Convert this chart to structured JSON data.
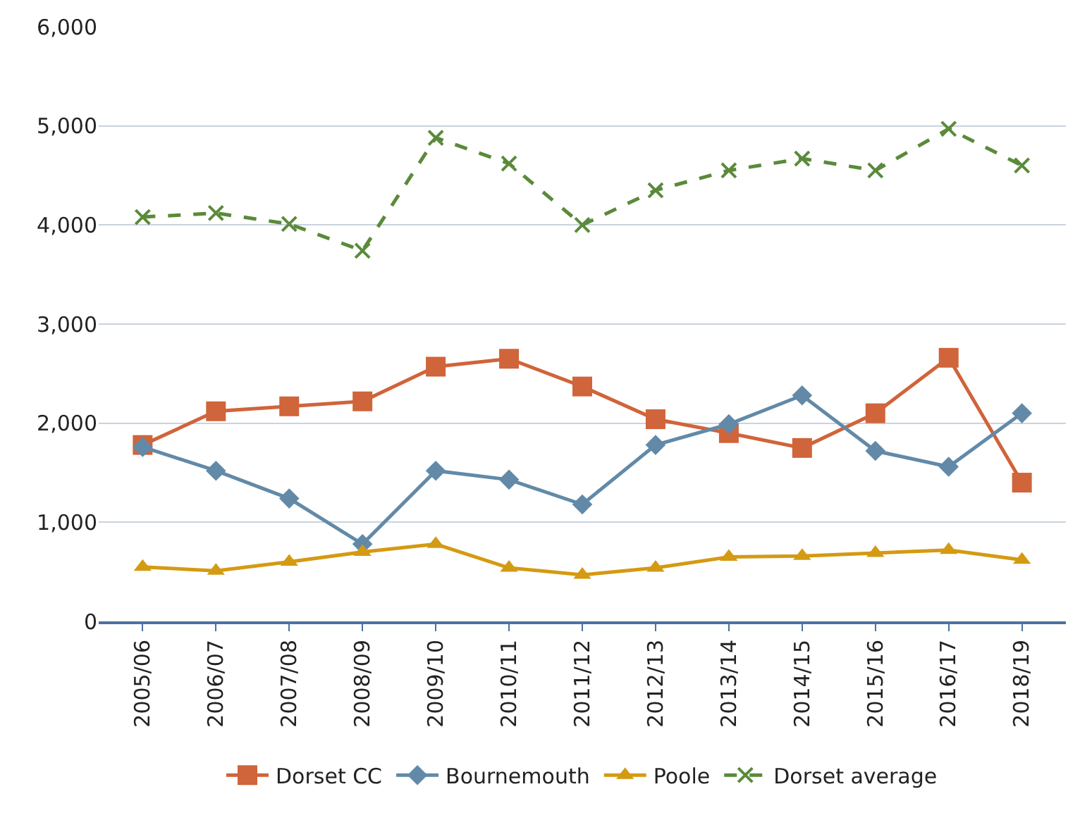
{
  "chart_data": {
    "type": "line",
    "categories": [
      "2005/06",
      "2006/07",
      "2007/08",
      "2008/09",
      "2009/10",
      "2010/11",
      "2011/12",
      "2012/13",
      "2013/14",
      "2014/15",
      "2015/16",
      "2016/17",
      "2018/19"
    ],
    "series": [
      {
        "name": "Dorset CC",
        "color": "#d0643a",
        "marker": "square",
        "line_style": "solid",
        "values": [
          1780,
          2120,
          2170,
          2220,
          2570,
          2650,
          2370,
          2040,
          1900,
          1750,
          2100,
          2660,
          1400
        ]
      },
      {
        "name": "Bournemouth",
        "color": "#628aa8",
        "marker": "diamond",
        "line_style": "solid",
        "values": [
          1760,
          1520,
          1240,
          780,
          1520,
          1430,
          1180,
          1780,
          1990,
          2280,
          1720,
          1560,
          2100
        ]
      },
      {
        "name": "Poole",
        "color": "#d49a12",
        "marker": "triangle",
        "line_style": "solid",
        "values": [
          550,
          510,
          600,
          700,
          780,
          540,
          470,
          540,
          650,
          660,
          690,
          720,
          620
        ]
      },
      {
        "name": "Dorset average",
        "color": "#5a8a3a",
        "marker": "cross",
        "line_style": "dashed",
        "values": [
          4080,
          4120,
          4010,
          3740,
          4880,
          4620,
          4000,
          4350,
          4550,
          4670,
          4550,
          4970,
          4600
        ]
      }
    ],
    "ylim": [
      0,
      6000
    ],
    "yticks": [
      {
        "value": 0,
        "label": "0"
      },
      {
        "value": 1000,
        "label": "1,000"
      },
      {
        "value": 2000,
        "label": "2,000"
      },
      {
        "value": 3000,
        "label": "3,000"
      },
      {
        "value": 4000,
        "label": "4,000"
      },
      {
        "value": 5000,
        "label": "5,000"
      },
      {
        "value": 6000,
        "label": "6,000"
      }
    ],
    "grid": "y",
    "legend": "bottom"
  }
}
